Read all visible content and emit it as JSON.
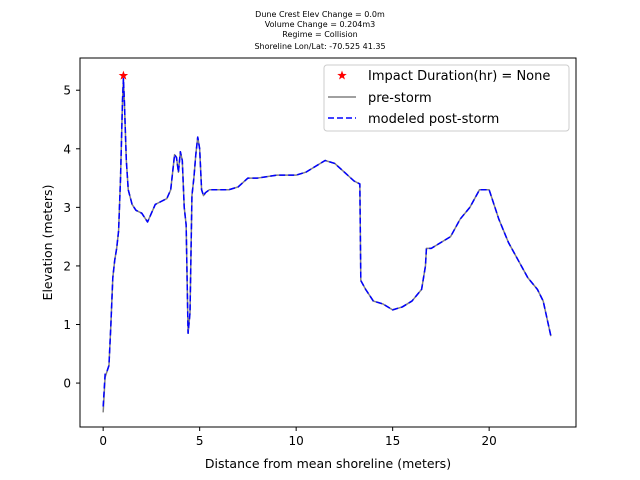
{
  "chart_data": {
    "type": "line",
    "title_lines": [
      "Dune Crest Elev Change = 0.0m",
      "Volume Change = 0.204m3",
      "Regime = Collision",
      "Shoreline Lon/Lat: -70.525 41.35"
    ],
    "xlabel": "Distance from mean shoreline (meters)",
    "ylabel": "Elevation (meters)",
    "xlim": [
      -1.2,
      24.5
    ],
    "ylim": [
      -0.75,
      5.55
    ],
    "xticks": [
      0,
      5,
      10,
      15,
      20
    ],
    "yticks": [
      0,
      1,
      2,
      3,
      4,
      5
    ],
    "grid": false,
    "legend_position": "top-right",
    "legend": [
      {
        "label": "Impact Duration(hr) = None",
        "marker": "red-star"
      },
      {
        "label": "pre-storm",
        "style": "solid",
        "color": "#808080"
      },
      {
        "label": "modeled post-storm",
        "style": "dashed",
        "color": "#0000ff"
      }
    ],
    "marker_point": {
      "x": 1.05,
      "y": 5.25,
      "color": "#ff0000"
    },
    "series": [
      {
        "name": "pre-storm",
        "color": "#808080",
        "x": [
          0,
          0.1,
          0.2,
          0.3,
          0.4,
          0.5,
          0.6,
          0.7,
          0.8,
          0.9,
          1.0,
          1.05,
          1.1,
          1.2,
          1.3,
          1.5,
          1.7,
          2.0,
          2.3,
          2.5,
          2.7,
          3.0,
          3.3,
          3.5,
          3.7,
          3.8,
          3.9,
          4.0,
          4.1,
          4.2,
          4.3,
          4.4,
          4.5,
          4.6,
          4.7,
          4.8,
          4.9,
          5.0,
          5.1,
          5.2,
          5.3,
          5.5,
          6.0,
          6.5,
          7.0,
          7.5,
          8.0,
          9.0,
          10.0,
          10.5,
          11.0,
          11.5,
          12.0,
          12.5,
          13.0,
          13.3,
          13.35,
          13.6,
          14.0,
          14.5,
          15.0,
          15.5,
          16.0,
          16.5,
          16.7,
          16.75,
          17.0,
          17.5,
          18.0,
          18.5,
          19.0,
          19.5,
          20.0,
          20.2,
          20.5,
          21.0,
          21.5,
          22.0,
          22.5,
          22.8,
          23.0,
          23.2
        ],
        "y": [
          -0.5,
          0.1,
          0.2,
          0.3,
          1.0,
          1.8,
          2.1,
          2.3,
          2.6,
          3.5,
          4.8,
          5.2,
          4.8,
          3.8,
          3.3,
          3.05,
          2.95,
          2.9,
          2.75,
          2.9,
          3.05,
          3.1,
          3.15,
          3.3,
          3.9,
          3.85,
          3.6,
          3.95,
          3.8,
          3.0,
          2.7,
          0.85,
          1.2,
          3.2,
          3.5,
          3.9,
          4.2,
          4.0,
          3.3,
          3.2,
          3.25,
          3.3,
          3.3,
          3.3,
          3.35,
          3.5,
          3.5,
          3.55,
          3.55,
          3.6,
          3.7,
          3.8,
          3.75,
          3.6,
          3.45,
          3.4,
          1.75,
          1.6,
          1.4,
          1.35,
          1.25,
          1.3,
          1.4,
          1.6,
          2.0,
          2.3,
          2.3,
          2.4,
          2.5,
          2.8,
          3.0,
          3.3,
          3.3,
          3.1,
          2.8,
          2.4,
          2.1,
          1.8,
          1.6,
          1.4,
          1.1,
          0.8
        ]
      },
      {
        "name": "modeled post-storm",
        "color": "#0000ff",
        "x": [
          0,
          0.1,
          0.2,
          0.3,
          0.4,
          0.5,
          0.6,
          0.7,
          0.8,
          0.9,
          1.0,
          1.05,
          1.1,
          1.2,
          1.3,
          1.5,
          1.7,
          2.0,
          2.3,
          2.5,
          2.7,
          3.0,
          3.3,
          3.5,
          3.7,
          3.8,
          3.9,
          4.0,
          4.1,
          4.2,
          4.3,
          4.4,
          4.5,
          4.6,
          4.7,
          4.8,
          4.9,
          5.0,
          5.1,
          5.2,
          5.3,
          5.5,
          6.0,
          6.5,
          7.0,
          7.5,
          8.0,
          9.0,
          10.0,
          10.5,
          11.0,
          11.5,
          12.0,
          12.5,
          13.0,
          13.3,
          13.35,
          13.6,
          14.0,
          14.5,
          15.0,
          15.5,
          16.0,
          16.5,
          16.7,
          16.75,
          17.0,
          17.5,
          18.0,
          18.5,
          19.0,
          19.5,
          20.0,
          20.2,
          20.5,
          21.0,
          21.5,
          22.0,
          22.5,
          22.8,
          23.0,
          23.2
        ],
        "y": [
          -0.4,
          0.15,
          0.2,
          0.3,
          1.0,
          1.8,
          2.1,
          2.3,
          2.6,
          3.5,
          4.8,
          5.2,
          4.8,
          3.8,
          3.3,
          3.05,
          2.95,
          2.9,
          2.75,
          2.9,
          3.05,
          3.1,
          3.15,
          3.3,
          3.9,
          3.85,
          3.6,
          3.95,
          3.8,
          3.0,
          2.7,
          0.85,
          1.2,
          3.2,
          3.5,
          3.9,
          4.2,
          4.0,
          3.3,
          3.2,
          3.25,
          3.3,
          3.3,
          3.3,
          3.35,
          3.5,
          3.5,
          3.55,
          3.55,
          3.6,
          3.7,
          3.8,
          3.75,
          3.6,
          3.45,
          3.4,
          1.75,
          1.6,
          1.4,
          1.35,
          1.25,
          1.3,
          1.4,
          1.6,
          2.0,
          2.3,
          2.3,
          2.4,
          2.5,
          2.8,
          3.0,
          3.3,
          3.3,
          3.1,
          2.8,
          2.4,
          2.1,
          1.8,
          1.6,
          1.4,
          1.1,
          0.8
        ]
      }
    ]
  }
}
